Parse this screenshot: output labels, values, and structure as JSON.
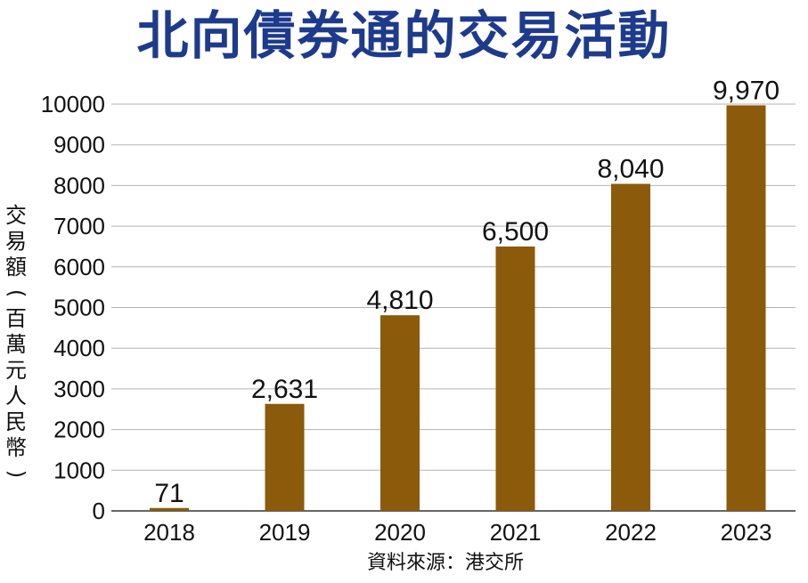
{
  "chart_data": {
    "type": "bar",
    "title": "北向債券通的交易活動",
    "ylabel": "交易額(百萬元人民幣)",
    "xlabel": "",
    "categories": [
      "2018",
      "2019",
      "2020",
      "2021",
      "2022",
      "2023"
    ],
    "values": [
      71,
      2631,
      4810,
      6500,
      8040,
      9970
    ],
    "data_labels": [
      "71",
      "2,631",
      "4,810",
      "6,500",
      "8,040",
      "9,970"
    ],
    "yticks": [
      "0",
      "1000",
      "2000",
      "3000",
      "4000",
      "5000",
      "6000",
      "7000",
      "8000",
      "9000",
      "10000"
    ],
    "ylim": [
      0,
      10000
    ],
    "grid": true,
    "legend": "none",
    "source": "資料來源：港交所"
  },
  "colors": {
    "title": "#1d3a8c",
    "bar": "#8b5a0a",
    "grid": "#b3b3b3",
    "axis": "#333333"
  }
}
